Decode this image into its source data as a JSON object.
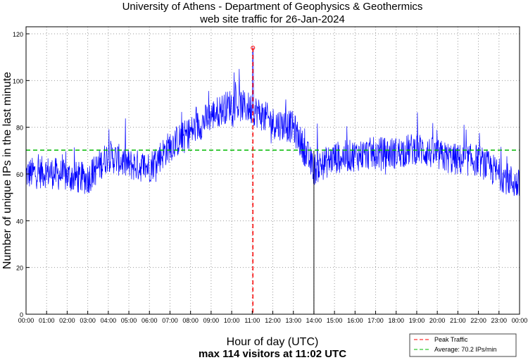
{
  "chart_data": {
    "type": "line",
    "title": "University of Athens - Department of Geophysics & Geothermics",
    "subtitle": "web site traffic for 26-Jan-2024",
    "xlabel": "Hour of day (UTC)",
    "footer": "max 114 visitors at 11:02 UTC",
    "ylabel": "Number of unique IPs in the last minute",
    "ylim": [
      0,
      120
    ],
    "xlim": [
      0,
      24
    ],
    "yticks": [
      0,
      20,
      40,
      60,
      80,
      100,
      120
    ],
    "xticks": [
      "00:00",
      "01:00",
      "02:00",
      "03:00",
      "04:00",
      "05:00",
      "06:00",
      "07:00",
      "08:00",
      "09:00",
      "10:00",
      "11:00",
      "12:00",
      "13:00",
      "14:00",
      "15:00",
      "16:00",
      "17:00",
      "18:00",
      "19:00",
      "20:00",
      "21:00",
      "22:00",
      "23:00",
      "00:00"
    ],
    "grid": true,
    "series": [
      {
        "name": "Traffic",
        "color": "#0000ff",
        "resolution": "1 minute",
        "hourly_mean_profile": [
          60,
          61,
          59,
          58,
          68,
          64,
          63,
          72,
          78,
          85,
          90,
          88,
          82,
          80,
          62,
          67,
          68,
          69,
          69,
          71,
          68,
          66,
          66,
          60,
          55
        ],
        "noise_amplitude": 7
      }
    ],
    "peak": {
      "time_hours": 11.033,
      "value": 114,
      "label": "Peak Traffic",
      "color": "#ff0000"
    },
    "average": {
      "value": 70.2,
      "label": "Average: 70.2 IPs/min",
      "color": "#00bb00"
    },
    "legend": {
      "placement": "bottom-right"
    }
  }
}
